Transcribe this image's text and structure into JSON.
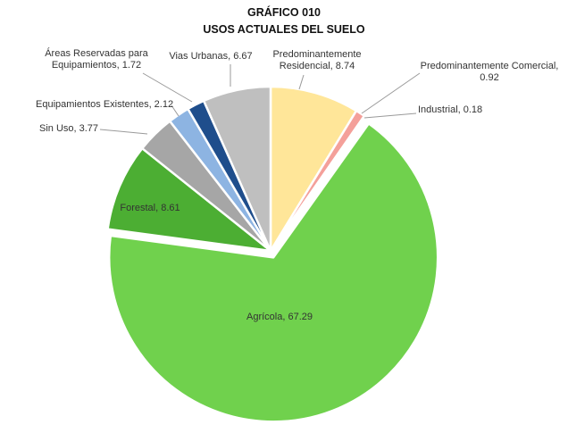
{
  "chart_data": {
    "type": "pie",
    "title": "GRÁFICO 010",
    "subtitle": "USOS ACTUALES  DEL SUELO",
    "slices": [
      {
        "name": "Predominantemente Residencial",
        "label_lines": [
          "Predominantemente",
          "Residencial, 8.74"
        ],
        "value": 8.74,
        "color": "#ffe699"
      },
      {
        "name": "Predominantemente Comercial",
        "label_lines": [
          "Predominantemente Comercial,",
          "0.92"
        ],
        "value": 0.92,
        "color": "#f4a09a"
      },
      {
        "name": "Industrial",
        "label_lines": [
          "Industrial, 0.18"
        ],
        "value": 0.18,
        "color": "#c9c9c9"
      },
      {
        "name": "Agrícola",
        "label_lines": [
          "Agrícola, 67.29"
        ],
        "value": 67.29,
        "color": "#70d14d",
        "explode": true
      },
      {
        "name": "Forestal",
        "label_lines": [
          "Forestal, 8.61"
        ],
        "value": 8.61,
        "color": "#4cae33"
      },
      {
        "name": "Sin Uso",
        "label_lines": [
          "Sin Uso, 3.77"
        ],
        "value": 3.77,
        "color": "#a6a6a6"
      },
      {
        "name": "Equipamientos Existentes",
        "label_lines": [
          "Equipamientos Existentes, 2.12"
        ],
        "value": 2.12,
        "color": "#8db4e2"
      },
      {
        "name": "Áreas Reservadas para Equipamientos",
        "label_lines": [
          "Áreas Reservadas para",
          "Equipamientos, 1.72"
        ],
        "value": 1.72,
        "color": "#1f4e8c"
      },
      {
        "name": "Vías Urbanas",
        "label_lines": [
          "Vias Urbanas, 6.67"
        ],
        "value": 6.67,
        "color": "#bfbfbf"
      }
    ],
    "legend": "none",
    "label_style": "outside with leader lines; Agrícola and Forestal inside"
  }
}
